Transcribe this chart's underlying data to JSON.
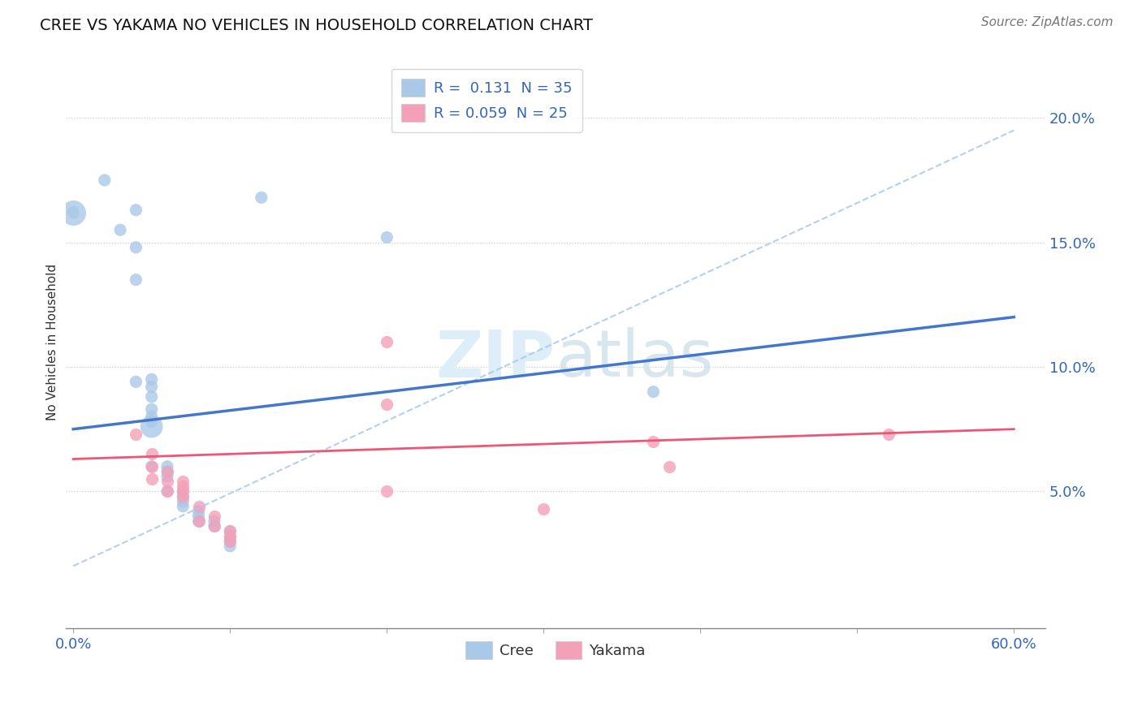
{
  "title": "CREE VS YAKAMA NO VEHICLES IN HOUSEHOLD CORRELATION CHART",
  "source": "Source: ZipAtlas.com",
  "ylabel": "No Vehicles in Household",
  "xlim": [
    -0.005,
    0.62
  ],
  "ylim": [
    -0.005,
    0.225
  ],
  "xtick_positions": [
    0.0,
    0.1,
    0.2,
    0.3,
    0.4,
    0.5,
    0.6
  ],
  "xtick_labels": [
    "0.0%",
    "",
    "",
    "",
    "",
    "",
    "60.0%"
  ],
  "ytick_positions": [
    0.05,
    0.1,
    0.15,
    0.2
  ],
  "ytick_labels": [
    "5.0%",
    "10.0%",
    "15.0%",
    "20.0%"
  ],
  "cree_R": 0.131,
  "cree_N": 35,
  "yakama_R": 0.059,
  "yakama_N": 25,
  "cree_scatter_color": "#aac8e8",
  "yakama_scatter_color": "#f4a0b8",
  "cree_line_color": "#4477cc",
  "cree_dashed_color": "#aac8e8",
  "yakama_line_color": "#ee5577",
  "legend_color": "#3366bb",
  "watermark_color": "#ddeef8",
  "cree_x": [
    0.0,
    0.02,
    0.03,
    0.04,
    0.04,
    0.04,
    0.05,
    0.05,
    0.05,
    0.05,
    0.05,
    0.05,
    0.05,
    0.06,
    0.06,
    0.06,
    0.06,
    0.07,
    0.07,
    0.07,
    0.07,
    0.08,
    0.08,
    0.08,
    0.09,
    0.09,
    0.1,
    0.1,
    0.1,
    0.1,
    0.12,
    0.2,
    0.37,
    0.04,
    0.05
  ],
  "cree_y": [
    0.162,
    0.175,
    0.155,
    0.163,
    0.148,
    0.135,
    0.095,
    0.092,
    0.088,
    0.083,
    0.08,
    0.078,
    0.06,
    0.06,
    0.058,
    0.056,
    0.05,
    0.05,
    0.048,
    0.046,
    0.044,
    0.042,
    0.04,
    0.038,
    0.038,
    0.036,
    0.034,
    0.032,
    0.03,
    0.028,
    0.168,
    0.152,
    0.09,
    0.094,
    0.076
  ],
  "cree_sizes": [
    120,
    120,
    120,
    120,
    120,
    120,
    120,
    120,
    120,
    120,
    120,
    120,
    120,
    120,
    120,
    120,
    120,
    120,
    120,
    120,
    120,
    120,
    120,
    120,
    120,
    120,
    120,
    120,
    120,
    120,
    120,
    120,
    120,
    120,
    400
  ],
  "yakama_x": [
    0.04,
    0.05,
    0.05,
    0.05,
    0.06,
    0.06,
    0.06,
    0.07,
    0.07,
    0.07,
    0.07,
    0.08,
    0.08,
    0.09,
    0.09,
    0.1,
    0.1,
    0.1,
    0.2,
    0.2,
    0.37,
    0.38,
    0.52,
    0.2,
    0.3
  ],
  "yakama_y": [
    0.073,
    0.065,
    0.06,
    0.055,
    0.058,
    0.054,
    0.05,
    0.054,
    0.052,
    0.05,
    0.048,
    0.044,
    0.038,
    0.04,
    0.036,
    0.034,
    0.032,
    0.03,
    0.11,
    0.085,
    0.07,
    0.06,
    0.073,
    0.05,
    0.043
  ]
}
